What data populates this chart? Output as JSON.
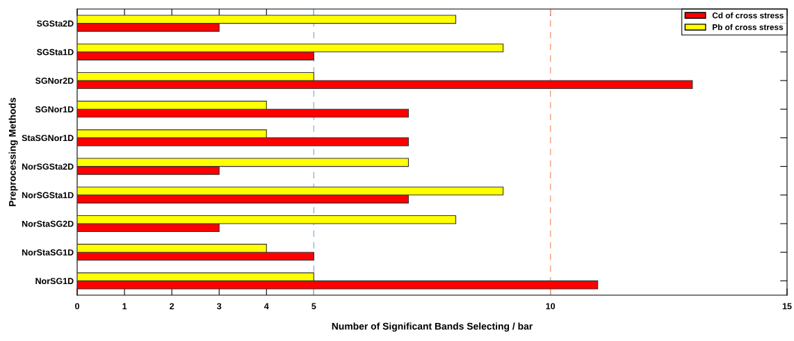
{
  "chart_data": {
    "type": "bar",
    "orientation": "horizontal",
    "xlabel": "Number of Significant Bands Selecting / bar",
    "ylabel": "Preprocessing Methods",
    "categories": [
      "SGSta2D",
      "SGSta1D",
      "SGNor2D",
      "SGNor1D",
      "StaSGNor1D",
      "NorSGSta2D",
      "NorSGSta1D",
      "NorStaSG2D",
      "NorStaSG1D",
      "NorSG1D"
    ],
    "series": [
      {
        "name": "Cd of cross stress",
        "color": "#ff0000",
        "values": [
          3,
          5,
          13,
          7,
          7,
          3,
          7,
          3,
          5,
          11
        ]
      },
      {
        "name": "Pb of cross stress",
        "color": "#ffff00",
        "values": [
          8,
          9,
          5,
          4,
          4,
          7,
          9,
          8,
          4,
          5
        ]
      }
    ],
    "xlim": [
      0,
      15
    ],
    "xticks": [
      0,
      1,
      2,
      3,
      4,
      5,
      10,
      15
    ],
    "ref_lines": [
      {
        "axis": "x",
        "value": 5,
        "color": "#8fbfe0",
        "line_style": "dashed"
      },
      {
        "axis": "x",
        "value": 10,
        "color": "#f4a582",
        "line_style": "dashed"
      }
    ],
    "grid": false,
    "legend": "top right"
  }
}
